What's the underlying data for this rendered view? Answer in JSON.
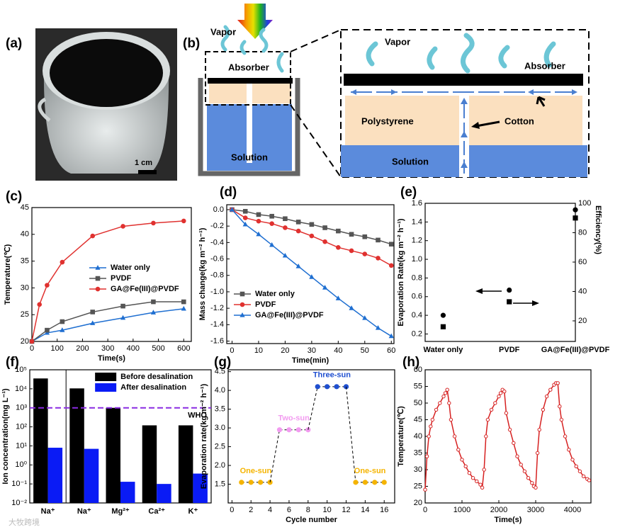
{
  "figure": {
    "panel_labels": [
      "(a)",
      "(b)",
      "(c)",
      "(d)",
      "(e)",
      "(f)",
      "(g)",
      "(h)"
    ],
    "photo": {
      "scale_bar": "1 cm"
    },
    "diagram": {
      "small": {
        "vapor": "Vapor",
        "absorber": "Absorber",
        "solution": "Solution"
      },
      "zoom": {
        "vapor": "Vapor",
        "absorber": "Absorber",
        "polystyrene": "Polystyrene",
        "cotton": "Cotton",
        "solution": "Solution"
      }
    },
    "watermark": "大牧跨境"
  },
  "chart_data": [
    {
      "type": "line",
      "x_label": "Time(s)",
      "y_label": "Temperature(℃)",
      "xlim": [
        0,
        630
      ],
      "xticks": [
        0,
        100,
        200,
        300,
        400,
        500,
        600
      ],
      "ylim": [
        20,
        45
      ],
      "yticks": [
        20,
        25,
        30,
        35,
        40,
        45
      ],
      "legend": "center-right",
      "series": [
        {
          "name": "Water only",
          "color": "#1f6fd1",
          "marker": "triangle",
          "x": [
            0,
            60,
            120,
            240,
            360,
            480,
            600
          ],
          "values": [
            20,
            21.6,
            22.1,
            23.4,
            24.4,
            25.4,
            26.1
          ]
        },
        {
          "name": "PVDF",
          "color": "#555555",
          "marker": "square",
          "x": [
            0,
            60,
            120,
            240,
            360,
            480,
            600
          ],
          "values": [
            20,
            22.1,
            23.7,
            25.5,
            26.6,
            27.4,
            27.4
          ]
        },
        {
          "name": "GA@Fe(III)@PVDF",
          "color": "#e0312f",
          "marker": "circle",
          "x": [
            0,
            30,
            60,
            120,
            240,
            360,
            480,
            600
          ],
          "values": [
            20,
            26.9,
            30.5,
            34.8,
            39.7,
            41.5,
            42.1,
            42.5
          ]
        }
      ]
    },
    {
      "type": "line",
      "x_label": "Time(min)",
      "y_label": "Mass change(kg m⁻² h⁻¹)",
      "xlim": [
        -2,
        61
      ],
      "xticks": [
        0,
        10,
        20,
        30,
        40,
        50,
        60
      ],
      "ylim": [
        -1.63,
        0.06
      ],
      "yticks": [
        {
          "value": 0,
          "label": "0.0"
        },
        -0.2,
        -0.4,
        -0.6,
        -0.8,
        {
          "value": -1,
          "label": "-1.0"
        },
        -1.2,
        -1.4,
        -1.6
      ],
      "legend": "lower-left",
      "series": [
        {
          "name": "Water only",
          "color": "#555555",
          "marker": "square",
          "x": [
            0,
            5,
            10,
            15,
            20,
            25,
            30,
            35,
            40,
            45,
            50,
            55,
            60
          ],
          "values": [
            0,
            -0.02,
            -0.06,
            -0.08,
            -0.11,
            -0.15,
            -0.18,
            -0.22,
            -0.26,
            -0.3,
            -0.33,
            -0.37,
            -0.42
          ]
        },
        {
          "name": "PVDF",
          "color": "#e0312f",
          "marker": "circle",
          "x": [
            0,
            5,
            10,
            15,
            20,
            25,
            30,
            35,
            40,
            45,
            50,
            55,
            60
          ],
          "values": [
            0,
            -0.1,
            -0.14,
            -0.17,
            -0.22,
            -0.26,
            -0.32,
            -0.39,
            -0.46,
            -0.5,
            -0.54,
            -0.59,
            -0.68
          ]
        },
        {
          "name": "GA@Fe(III)@PVDF",
          "color": "#1f6fd1",
          "marker": "triangle",
          "x": [
            0,
            5,
            10,
            15,
            20,
            25,
            30,
            35,
            40,
            45,
            50,
            55,
            60
          ],
          "values": [
            0,
            -0.18,
            -0.3,
            -0.43,
            -0.56,
            -0.69,
            -0.82,
            -0.95,
            -1.08,
            -1.2,
            -1.32,
            -1.44,
            -1.54
          ]
        }
      ]
    },
    {
      "type": "scatter",
      "y_label": "Evaporation Rate(kg m⁻² h⁻¹)",
      "y2_label": "Efficiency(%)",
      "categories": [
        "Water only",
        "PVDF",
        "GA@Fe(III)@PVDF"
      ],
      "ylim": [
        0.12,
        1.6
      ],
      "yticks": [
        0.2,
        0.4,
        0.6,
        0.8,
        {
          "value": 1,
          "label": "1.0"
        },
        1.2,
        1.4,
        1.6
      ],
      "y2lim": [
        6,
        100
      ],
      "y2ticks": [
        20,
        40,
        60,
        80,
        100
      ],
      "series": [
        {
          "color": "#000000",
          "marker": "circle",
          "values": [
            0.4,
            0.67,
            1.53
          ]
        },
        {
          "color": "#000000",
          "marker": "square",
          "axis": "y2",
          "values": [
            16,
            33,
            90
          ]
        }
      ]
    },
    {
      "type": "bar",
      "y_label": "Ion concentration(mg L⁻¹)",
      "ylog": true,
      "categories": [
        "Na⁺",
        "Na⁺",
        "Mg²⁺",
        "Ca²⁺",
        "K⁺"
      ],
      "ylim": [
        0.01,
        100000
      ],
      "yticks": [
        {
          "value": 0.01,
          "label": "10⁻²"
        },
        {
          "value": 0.1,
          "label": "10⁻¹"
        },
        {
          "value": 1,
          "label": "10⁰"
        },
        {
          "value": 10,
          "label": "10¹"
        },
        {
          "value": 100,
          "label": "10²"
        },
        {
          "value": 1000,
          "label": "10³"
        },
        {
          "value": 10000,
          "label": "10⁴"
        },
        {
          "value": 100000,
          "label": "10⁵"
        }
      ],
      "legend": "upper-right",
      "separator": true,
      "reference": {
        "label": "WHO",
        "value": 1000,
        "color": "#8a2be2"
      },
      "series": [
        {
          "name": "Before desalination",
          "color": "#000000",
          "values": [
            35000,
            10500,
            1000,
            120,
            120
          ]
        },
        {
          "name": "After desalination",
          "color": "#0a1bf5",
          "values": [
            8,
            7,
            0.13,
            0.1,
            0.35
          ]
        }
      ]
    },
    {
      "type": "scatter",
      "x_label": "Cycle number",
      "y_label": "Evaporation rate(kg m⁻² h⁻¹)",
      "xlim": [
        -0.4,
        17.1
      ],
      "xticks": [
        0,
        2,
        4,
        6,
        8,
        10,
        12,
        14,
        16
      ],
      "ylim": [
        1.0,
        4.55
      ],
      "yticks": [
        1.5,
        {
          "value": 2,
          "label": "2.0"
        },
        2.5,
        {
          "value": 3,
          "label": "3.0"
        },
        3.5,
        {
          "value": 4,
          "label": "4.0"
        },
        4.5
      ],
      "connect": true,
      "series": [
        {
          "name": "One-sun",
          "color": "#f5b400",
          "marker": "circle",
          "x": [
            1,
            2,
            3,
            4
          ],
          "values": [
            1.55,
            1.55,
            1.55,
            1.55
          ]
        },
        {
          "name": "Two-sun",
          "color": "#f29bf0",
          "marker": "circle",
          "x": [
            5,
            6,
            7,
            8
          ],
          "values": [
            2.95,
            2.95,
            2.95,
            2.95
          ]
        },
        {
          "name": "Three-sun",
          "color": "#1f4fd0",
          "marker": "circle",
          "x": [
            9,
            10,
            11,
            12
          ],
          "values": [
            4.1,
            4.1,
            4.1,
            4.1
          ]
        },
        {
          "name": "One-sun",
          "color": "#f5b400",
          "marker": "circle",
          "x": [
            13,
            14,
            15,
            16
          ],
          "values": [
            1.55,
            1.55,
            1.55,
            1.55
          ]
        }
      ]
    },
    {
      "type": "line",
      "x_label": "Time(s)",
      "y_label": "Temperature(℃)",
      "xlim": [
        0,
        4500
      ],
      "xticks": [
        0,
        1000,
        2000,
        3000,
        4000
      ],
      "ylim": [
        20,
        60
      ],
      "yticks": [
        20,
        25,
        30,
        35,
        40,
        45,
        50,
        55,
        60
      ],
      "series": [
        {
          "color": "#d62020",
          "marker": "open-circle",
          "x": [
            0,
            50,
            100,
            150,
            200,
            300,
            400,
            500,
            550,
            600,
            650,
            700,
            800,
            900,
            1000,
            1100,
            1200,
            1300,
            1400,
            1500,
            1550,
            1600,
            1650,
            1700,
            1800,
            1900,
            2000,
            2050,
            2100,
            2150,
            2200,
            2300,
            2400,
            2500,
            2600,
            2700,
            2800,
            2900,
            2950,
            3000,
            3050,
            3100,
            3200,
            3300,
            3400,
            3500,
            3550,
            3600,
            3650,
            3700,
            3800,
            3900,
            4000,
            4100,
            4200,
            4300,
            4400,
            4450
          ],
          "values": [
            24,
            34,
            40,
            43,
            45,
            48,
            50,
            52,
            53,
            54,
            50,
            45,
            40,
            36,
            33,
            31,
            29,
            27.5,
            26.5,
            25.5,
            24.6,
            30,
            40,
            45,
            48,
            50,
            52,
            53,
            54,
            53.5,
            47,
            42,
            38,
            34,
            31.5,
            29.5,
            27.5,
            26,
            25,
            24.6,
            35,
            42,
            48,
            52,
            54,
            55.5,
            56,
            56,
            49,
            45,
            40,
            36,
            33,
            31,
            29.5,
            28,
            27.2,
            26.8
          ]
        }
      ]
    }
  ]
}
